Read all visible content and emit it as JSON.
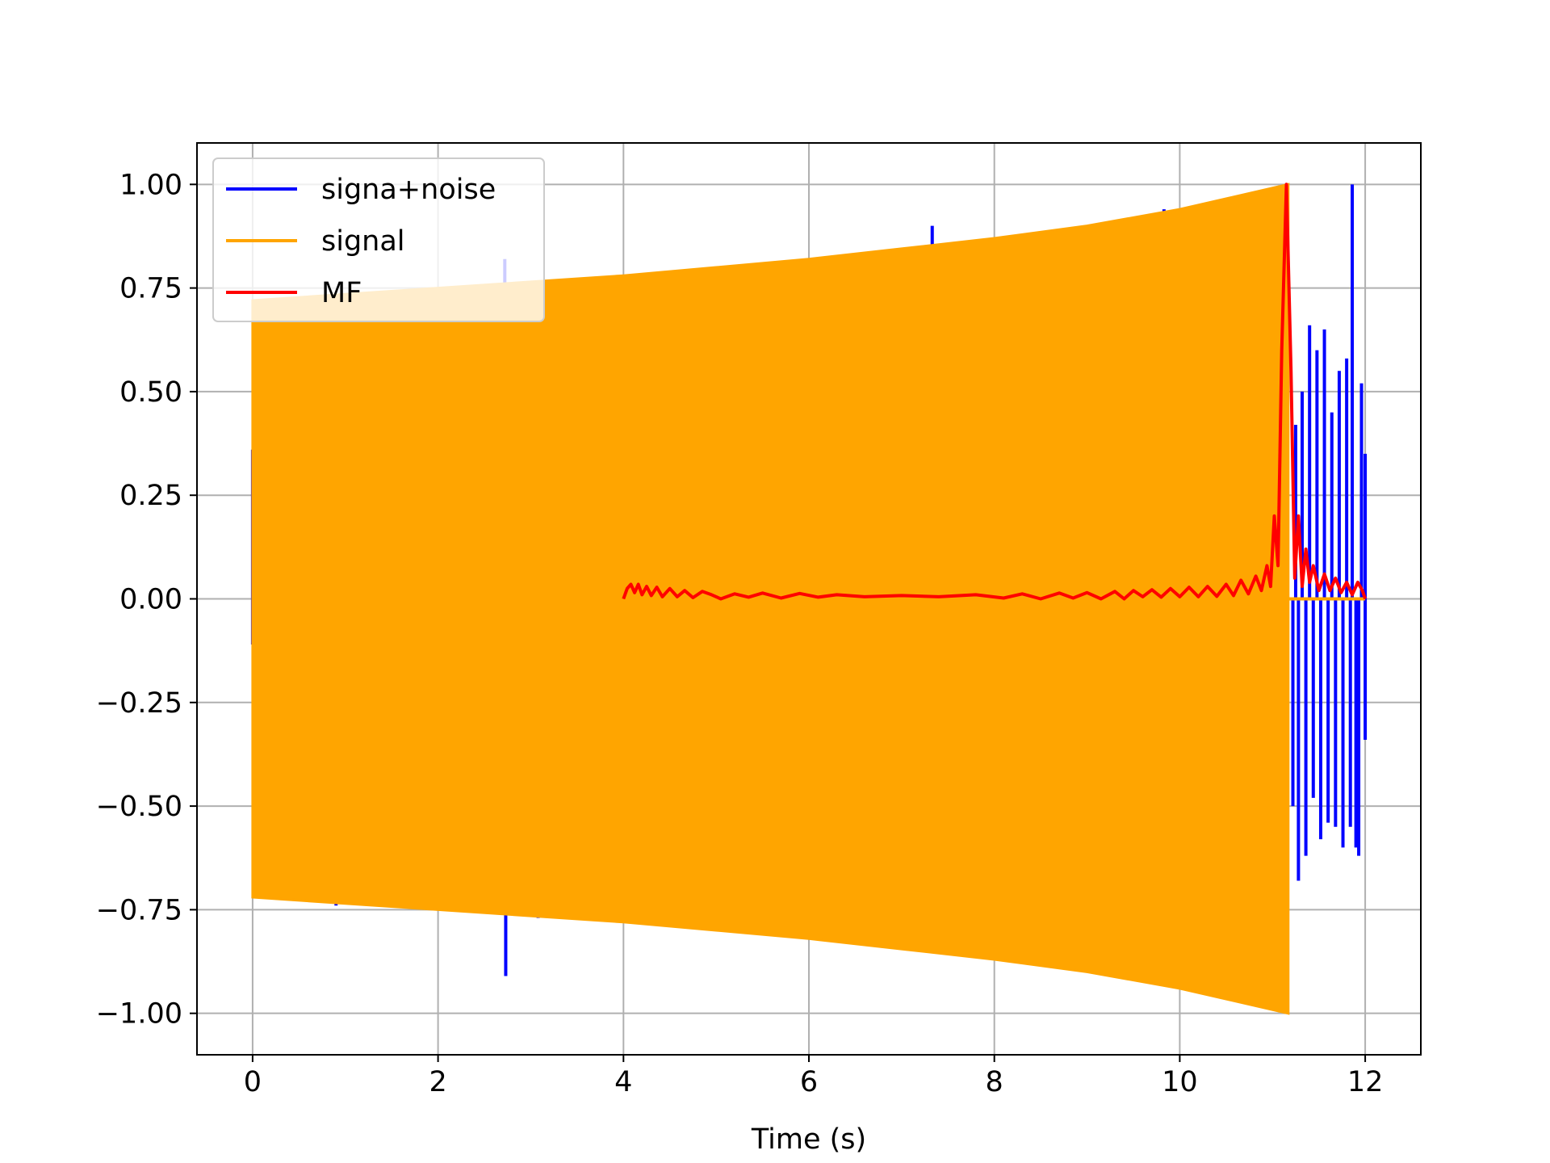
{
  "chart_data": {
    "type": "line",
    "title": "",
    "xlabel": "Time (s)",
    "ylabel": "",
    "xlim": [
      -0.6,
      12.6
    ],
    "ylim": [
      -1.1,
      1.1
    ],
    "xticks": [
      0,
      2,
      4,
      6,
      8,
      10,
      12
    ],
    "xtick_labels": [
      "0",
      "2",
      "4",
      "6",
      "8",
      "10",
      "12"
    ],
    "yticks": [
      1.0,
      0.75,
      0.5,
      0.25,
      0.0,
      -0.25,
      -0.5,
      -0.75,
      -1.0
    ],
    "ytick_labels": [
      "1.00",
      "0.75",
      "0.50",
      "0.25",
      "0.00",
      "−0.25",
      "−0.50",
      "−0.75",
      "−1.00"
    ],
    "grid": true,
    "legend_position": "top-left",
    "series": [
      {
        "name": "signa+noise",
        "color": "#0000ff",
        "kind": "spikes",
        "points": [
          [
            0.0,
            0.36
          ],
          [
            0.0,
            -0.11
          ],
          [
            0.9,
            -0.74
          ],
          [
            2.72,
            0.82
          ],
          [
            2.73,
            -0.91
          ],
          [
            3.08,
            -0.77
          ],
          [
            7.33,
            0.9
          ],
          [
            9.83,
            0.94
          ],
          [
            11.22,
            -0.5
          ],
          [
            11.25,
            0.42
          ],
          [
            11.28,
            -0.68
          ],
          [
            11.32,
            0.5
          ],
          [
            11.36,
            -0.62
          ],
          [
            11.4,
            0.66
          ],
          [
            11.44,
            -0.48
          ],
          [
            11.48,
            0.6
          ],
          [
            11.52,
            -0.58
          ],
          [
            11.56,
            0.65
          ],
          [
            11.6,
            -0.54
          ],
          [
            11.64,
            0.45
          ],
          [
            11.68,
            -0.55
          ],
          [
            11.72,
            0.55
          ],
          [
            11.76,
            -0.6
          ],
          [
            11.8,
            0.58
          ],
          [
            11.84,
            -0.55
          ],
          [
            11.86,
            1.0
          ],
          [
            11.9,
            -0.6
          ],
          [
            11.93,
            -0.62
          ],
          [
            11.96,
            0.52
          ],
          [
            12.0,
            -0.34
          ],
          [
            12.0,
            0.35
          ]
        ]
      },
      {
        "name": "signal",
        "color": "#ffa500",
        "kind": "envelope",
        "t_start": 0.0,
        "t_end": 11.17,
        "envelope": [
          [
            0.0,
            0.72
          ],
          [
            1.0,
            0.735
          ],
          [
            2.0,
            0.75
          ],
          [
            3.0,
            0.765
          ],
          [
            4.0,
            0.78
          ],
          [
            5.0,
            0.8
          ],
          [
            6.0,
            0.82
          ],
          [
            7.0,
            0.845
          ],
          [
            8.0,
            0.87
          ],
          [
            9.0,
            0.9
          ],
          [
            10.0,
            0.94
          ],
          [
            11.17,
            1.0
          ]
        ],
        "after_end_value": 0.0,
        "t_final": 12.0
      },
      {
        "name": "MF",
        "color": "#ff0000",
        "kind": "line",
        "points": [
          [
            4.0,
            0.0
          ],
          [
            4.04,
            0.025
          ],
          [
            4.08,
            0.035
          ],
          [
            4.12,
            0.015
          ],
          [
            4.16,
            0.035
          ],
          [
            4.2,
            0.01
          ],
          [
            4.25,
            0.03
          ],
          [
            4.3,
            0.008
          ],
          [
            4.36,
            0.028
          ],
          [
            4.42,
            0.005
          ],
          [
            4.5,
            0.025
          ],
          [
            4.58,
            0.005
          ],
          [
            4.66,
            0.02
          ],
          [
            4.75,
            0.003
          ],
          [
            4.85,
            0.018
          ],
          [
            4.95,
            0.01
          ],
          [
            5.05,
            0.0
          ],
          [
            5.2,
            0.012
          ],
          [
            5.35,
            0.004
          ],
          [
            5.5,
            0.014
          ],
          [
            5.7,
            0.002
          ],
          [
            5.9,
            0.013
          ],
          [
            6.1,
            0.004
          ],
          [
            6.3,
            0.01
          ],
          [
            6.6,
            0.005
          ],
          [
            7.0,
            0.008
          ],
          [
            7.4,
            0.005
          ],
          [
            7.8,
            0.01
          ],
          [
            8.1,
            0.002
          ],
          [
            8.3,
            0.012
          ],
          [
            8.5,
            0.0
          ],
          [
            8.7,
            0.014
          ],
          [
            8.85,
            0.002
          ],
          [
            9.0,
            0.015
          ],
          [
            9.15,
            0.0
          ],
          [
            9.3,
            0.018
          ],
          [
            9.4,
            0.0
          ],
          [
            9.5,
            0.02
          ],
          [
            9.6,
            0.005
          ],
          [
            9.7,
            0.022
          ],
          [
            9.8,
            0.004
          ],
          [
            9.9,
            0.025
          ],
          [
            10.0,
            0.005
          ],
          [
            10.1,
            0.028
          ],
          [
            10.2,
            0.005
          ],
          [
            10.3,
            0.03
          ],
          [
            10.4,
            0.006
          ],
          [
            10.5,
            0.035
          ],
          [
            10.58,
            0.008
          ],
          [
            10.66,
            0.045
          ],
          [
            10.74,
            0.012
          ],
          [
            10.82,
            0.055
          ],
          [
            10.88,
            0.02
          ],
          [
            10.94,
            0.08
          ],
          [
            10.98,
            0.03
          ],
          [
            11.02,
            0.2
          ],
          [
            11.06,
            0.08
          ],
          [
            11.1,
            0.6
          ],
          [
            11.15,
            1.0
          ],
          [
            11.2,
            0.55
          ],
          [
            11.24,
            0.05
          ],
          [
            11.28,
            0.2
          ],
          [
            11.32,
            0.03
          ],
          [
            11.36,
            0.12
          ],
          [
            11.4,
            0.04
          ],
          [
            11.44,
            0.08
          ],
          [
            11.5,
            0.02
          ],
          [
            11.56,
            0.06
          ],
          [
            11.62,
            0.02
          ],
          [
            11.68,
            0.05
          ],
          [
            11.74,
            0.015
          ],
          [
            11.8,
            0.04
          ],
          [
            11.86,
            0.01
          ],
          [
            11.92,
            0.04
          ],
          [
            11.97,
            0.02
          ],
          [
            12.0,
            0.0
          ]
        ]
      }
    ]
  }
}
